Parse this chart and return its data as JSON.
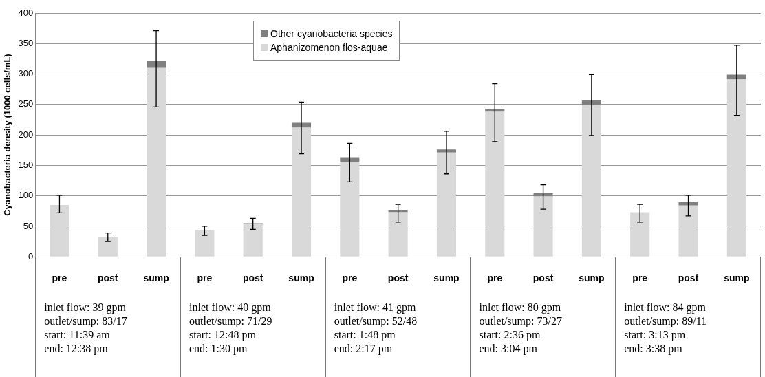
{
  "chart_data": {
    "type": "bar",
    "stacked": true,
    "ylabel": "Cyanobacteria density (1000 cells/mL)",
    "categories": [
      "pre",
      "post",
      "sump",
      "pre",
      "post",
      "sump",
      "pre",
      "post",
      "sump",
      "pre",
      "post",
      "sump",
      "pre",
      "post",
      "sump"
    ],
    "series": [
      {
        "name": "Aphanizomenon flos-aquae",
        "color": "#d9d9d9",
        "values": [
          85,
          33,
          310,
          44,
          53,
          212,
          155,
          73,
          171,
          238,
          99,
          249,
          73,
          84,
          291
        ]
      },
      {
        "name": "Other cyanobacteria species",
        "color": "#808080",
        "values": [
          0,
          0,
          12,
          0,
          2,
          8,
          8.5,
          4,
          5,
          5,
          5,
          8,
          0,
          6.5,
          8
        ],
        "errors": [
          [
            72,
            101
          ],
          [
            25,
            39
          ],
          [
            246,
            371
          ],
          [
            35,
            50
          ],
          [
            45,
            63
          ],
          [
            169,
            254
          ],
          [
            123,
            186
          ],
          [
            57,
            86
          ],
          [
            136,
            206
          ],
          [
            189,
            284
          ],
          [
            78,
            118
          ],
          [
            199,
            299
          ],
          [
            57,
            86
          ],
          [
            67,
            101
          ],
          [
            232,
            347
          ]
        ]
      }
    ],
    "ylim": [
      0,
      400
    ],
    "yticks": [
      0,
      50,
      100,
      150,
      200,
      250,
      300,
      350,
      400
    ],
    "grid": "y",
    "legend": "top",
    "annotations": [
      "inlet flow:  39 gpm\noutlet/sump: 83/17\nstart: 11:39 am\nend: 12:38 pm",
      "inlet flow:  40 gpm\noutlet/sump: 71/29\nstart: 12:48 pm\nend: 1:30 pm",
      "inlet flow:  41 gpm\noutlet/sump: 52/48\nstart: 1:48 pm\nend: 2:17 pm",
      "inlet flow:  80 gpm\noutlet/sump: 73/27\nstart: 2:36 pm\nend: 3:04 pm",
      "inlet flow:  84 gpm\noutlet/sump: 89/11\nstart: 3:13 pm\nend: 3:38 pm"
    ]
  }
}
